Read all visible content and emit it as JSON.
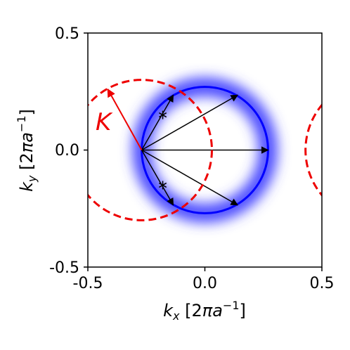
{
  "figure": {
    "x_ticks": [
      "-0.5",
      "0.0",
      "0.5"
    ],
    "y_ticks": [
      "-0.5",
      "0.0",
      "0.5"
    ],
    "xlabel": {
      "symbol": "k",
      "sub": "x",
      "unit_open": " [2",
      "pi": "π",
      "a": "a",
      "sup": "−1",
      "unit_close": "]"
    },
    "ylabel": {
      "symbol": "k",
      "sub": "y",
      "unit_open": " [2",
      "pi": "π",
      "a": "a",
      "sup": "−1",
      "unit_close": "]"
    },
    "k_label": "K"
  },
  "chart_data": {
    "type": "diagram",
    "xlim": [
      -0.5,
      0.5
    ],
    "ylim": [
      -0.5,
      0.5
    ],
    "colors": {
      "blue": "#0000ff",
      "red": "#ee0000",
      "black": "#000000"
    },
    "blue_circle": {
      "center": [
        0.0,
        0.0
      ],
      "radius": 0.27
    },
    "blur_ring": {
      "center": [
        0.0,
        0.0
      ],
      "radius": 0.27,
      "width": 0.08
    },
    "red_dashed_circles": [
      {
        "center": [
          -0.27,
          0.0
        ],
        "radius": 0.3
      },
      {
        "center": [
          0.73,
          0.0
        ],
        "radius": 0.3
      }
    ],
    "arrow_origin": [
      -0.27,
      0.0
    ],
    "arrow_tips": [
      [
        0.14,
        0.235
      ],
      [
        0.27,
        0.0
      ],
      [
        0.14,
        -0.235
      ],
      [
        -0.135,
        0.235
      ],
      [
        -0.135,
        -0.235
      ]
    ],
    "star_points": [
      [
        -0.18,
        0.15
      ],
      [
        -0.18,
        -0.15
      ]
    ],
    "k_vector": {
      "from": [
        -0.27,
        0.0
      ],
      "to": [
        -0.415,
        0.26
      ]
    }
  }
}
